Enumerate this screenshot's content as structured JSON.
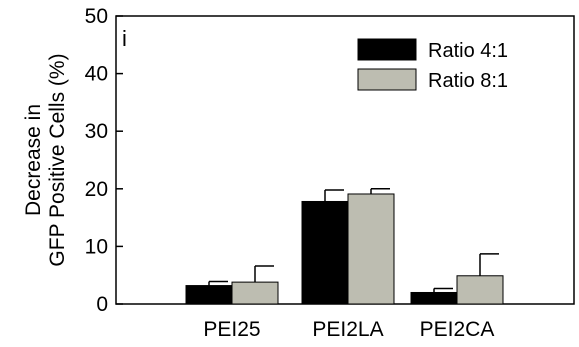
{
  "chart_data": {
    "type": "bar",
    "panel_label": "i",
    "categories": [
      "PEI25",
      "PEI2LA",
      "PEI2CA"
    ],
    "series": [
      {
        "name": "Ratio 4:1",
        "values": [
          3.2,
          17.8,
          2.0
        ],
        "error": [
          0.7,
          2.0,
          0.7
        ],
        "color": "#000000"
      },
      {
        "name": "Ratio 8:1",
        "values": [
          3.8,
          19.1,
          4.9
        ],
        "error": [
          2.8,
          0.9,
          3.8
        ],
        "color": "#bdbdb1"
      }
    ],
    "ylabel_line1": "Decrease in",
    "ylabel_line2": "GFP Positive Cells (%)",
    "xlabel": "",
    "ylim": [
      0,
      50
    ],
    "yticks": [
      "0",
      "10",
      "20",
      "30",
      "40",
      "50"
    ],
    "grid": false,
    "legend_position": "top-right",
    "error_bars": "upper"
  }
}
